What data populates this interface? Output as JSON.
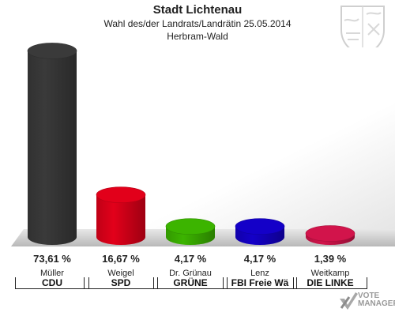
{
  "header": {
    "title": "Stadt Lichtenau",
    "subtitle": "Wahl des/der Landrats/Landrätin 25.05.2014",
    "area": "Herbram-Wald"
  },
  "brand": {
    "line1": "VOTE",
    "line2": "MANAGER"
  },
  "colors": {
    "floor": "#bcbcbc",
    "wall": "#d6d6d6"
  },
  "chart_data": {
    "type": "bar",
    "title": "Stadt Lichtenau",
    "ylim": [
      0,
      100
    ],
    "categories": [
      "CDU",
      "SPD",
      "GRÜNE",
      "FBI Freie Wä",
      "DIE LINKE"
    ],
    "candidates": [
      "Müller",
      "Weigel",
      "Dr. Grünau",
      "Lenz",
      "Weitkamp"
    ],
    "values": [
      73.61,
      16.67,
      4.17,
      4.17,
      1.39
    ],
    "labels": [
      "73,61 %",
      "16,67 %",
      "4,17 %",
      "4,17 %",
      "1,39 %"
    ],
    "colors": [
      "#3a3a3a",
      "#e2001a",
      "#3cb400",
      "#1400c8",
      "#d2144b"
    ]
  }
}
